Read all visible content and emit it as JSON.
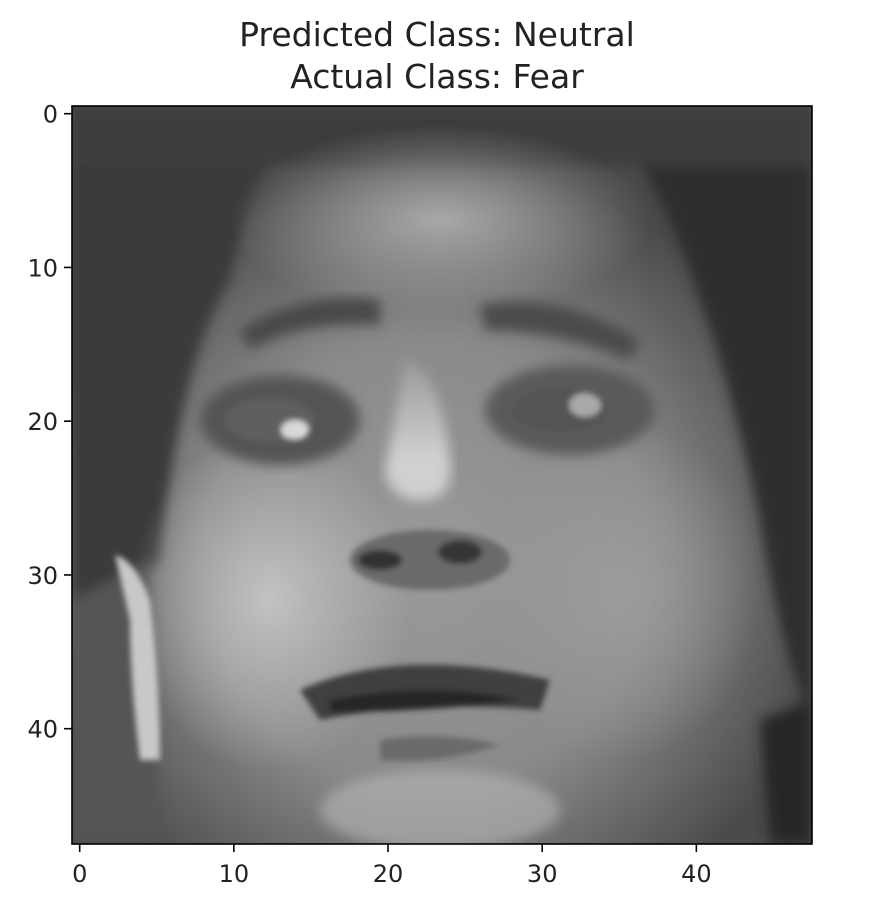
{
  "title": {
    "line1": "Predicted Class: Neutral",
    "line2": "Actual Class: Fear"
  },
  "image": {
    "description_icon": "grayscale-face-image",
    "colormap": "gray",
    "grid_size": [
      48,
      48
    ]
  },
  "axes": {
    "x_ticks": [
      "0",
      "10",
      "20",
      "30",
      "40"
    ],
    "y_ticks": [
      "0",
      "10",
      "20",
      "30",
      "40"
    ],
    "x_tick_values": [
      0,
      10,
      20,
      30,
      40
    ],
    "y_tick_values": [
      0,
      10,
      20,
      30,
      40
    ],
    "xlim": [
      -0.5,
      47.5
    ],
    "ylim": [
      47.5,
      -0.5
    ]
  }
}
